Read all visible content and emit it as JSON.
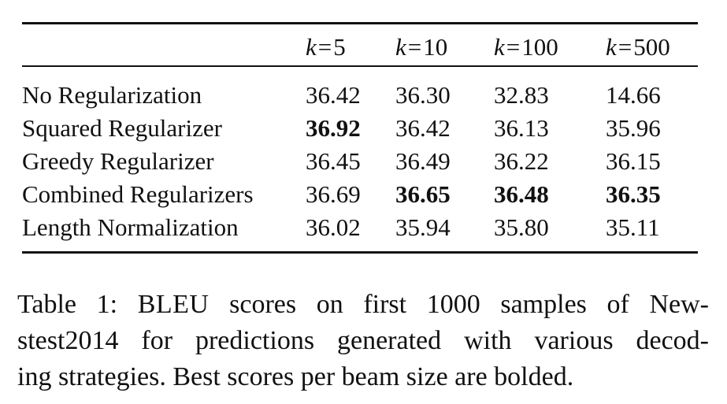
{
  "table": {
    "header": {
      "col1": {
        "var": "k",
        "eq": "=",
        "val": "5"
      },
      "col2": {
        "var": "k",
        "eq": "=",
        "val": "10"
      },
      "col3": {
        "var": "k",
        "eq": "=",
        "val": "100"
      },
      "col4": {
        "var": "k",
        "eq": "=",
        "val": "500"
      }
    },
    "rows": [
      {
        "label": "No Regularization",
        "v": [
          "36.42",
          "36.30",
          "32.83",
          "14.66"
        ]
      },
      {
        "label": "Squared Regularizer",
        "v": [
          "36.92",
          "36.42",
          "36.13",
          "35.96"
        ]
      },
      {
        "label": "Greedy Regularizer",
        "v": [
          "36.45",
          "36.49",
          "36.22",
          "36.15"
        ]
      },
      {
        "label": "Combined Regularizers",
        "v": [
          "36.69",
          "36.65",
          "36.48",
          "36.35"
        ]
      },
      {
        "label": "Length Normalization",
        "v": [
          "36.02",
          "35.94",
          "35.80",
          "35.11"
        ]
      }
    ]
  },
  "caption": {
    "prefix": "Table 1:",
    "metric": "BLEU",
    "line1_rest": "scores on first 1000 samples of New-",
    "line2": "stest2014 for predictions generated with various decod-",
    "line3": "ing strategies. Best scores per beam size are bolded."
  }
}
